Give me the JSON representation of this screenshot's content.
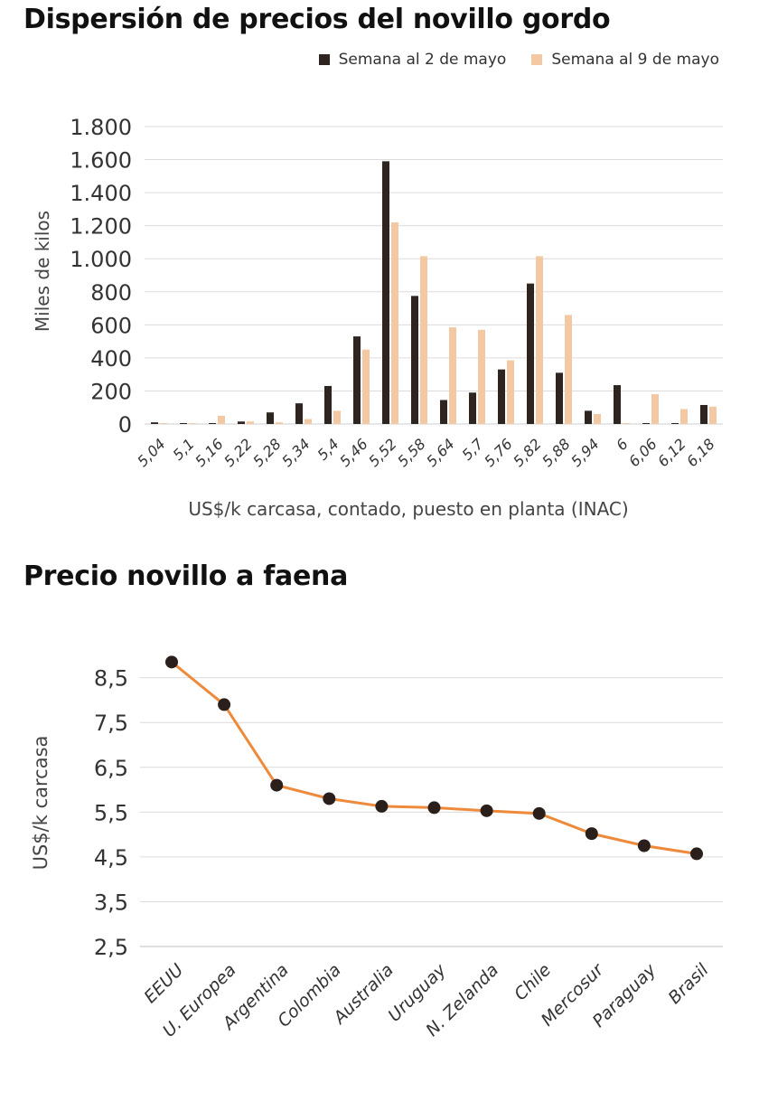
{
  "colors": {
    "series1": "#2e2420",
    "series2": "#f2c9a3",
    "line": "#ee8a3c",
    "marker": "#2a1f1b",
    "grid": "#dcdcdc"
  },
  "chart_data": [
    {
      "type": "bar",
      "title": "Dispersión de precios del novillo gordo",
      "xlabel": "US$/k carcasa, contado, puesto en planta (INAC)",
      "ylabel": "Miles de kilos",
      "categories": [
        "5,04",
        "5,1",
        "5,16",
        "5,22",
        "5,28",
        "5,34",
        "5,4",
        "5,46",
        "5,52",
        "5,58",
        "5,64",
        "5,7",
        "5,76",
        "5,82",
        "5,88",
        "5,94",
        "6",
        "6,06",
        "6,12",
        "6,18"
      ],
      "series": [
        {
          "name": "Semana al 2 de mayo",
          "values": [
            10,
            0,
            0,
            15,
            70,
            125,
            230,
            530,
            1590,
            775,
            145,
            190,
            330,
            850,
            310,
            80,
            235,
            0,
            0,
            115
          ]
        },
        {
          "name": "Semana al 9 de mayo",
          "values": [
            0,
            5,
            50,
            15,
            10,
            30,
            80,
            450,
            1220,
            1015,
            585,
            570,
            385,
            1015,
            660,
            60,
            0,
            180,
            90,
            105
          ]
        }
      ],
      "ylim": [
        0,
        1800
      ],
      "yticks": [
        0,
        200,
        400,
        600,
        800,
        1000,
        1200,
        1400,
        1600,
        1800
      ],
      "ytick_labels": [
        "0",
        "200",
        "400",
        "600",
        "800",
        "1.000",
        "1.200",
        "1.400",
        "1.600",
        "1.800"
      ],
      "grid": true,
      "legend": "top-right"
    },
    {
      "type": "line",
      "title": "Precio novillo a faena",
      "xlabel": "",
      "ylabel": "US$/k carcasa",
      "categories": [
        "EEUU",
        "U. Europea",
        "Argentina",
        "Colombia",
        "Australia",
        "Uruguay",
        "N. Zelanda",
        "Chile",
        "Mercosur",
        "Paraguay",
        "Brasil"
      ],
      "values": [
        8.85,
        7.9,
        6.1,
        5.8,
        5.63,
        5.6,
        5.53,
        5.47,
        5.02,
        4.75,
        4.57
      ],
      "ylim": [
        2.5,
        9.2
      ],
      "yticks": [
        2.5,
        3.5,
        4.5,
        5.5,
        6.5,
        7.5,
        8.5
      ],
      "ytick_labels": [
        "2,5",
        "3,5",
        "4,5",
        "5,5",
        "6,5",
        "7,5",
        "8,5"
      ],
      "grid": true
    }
  ]
}
